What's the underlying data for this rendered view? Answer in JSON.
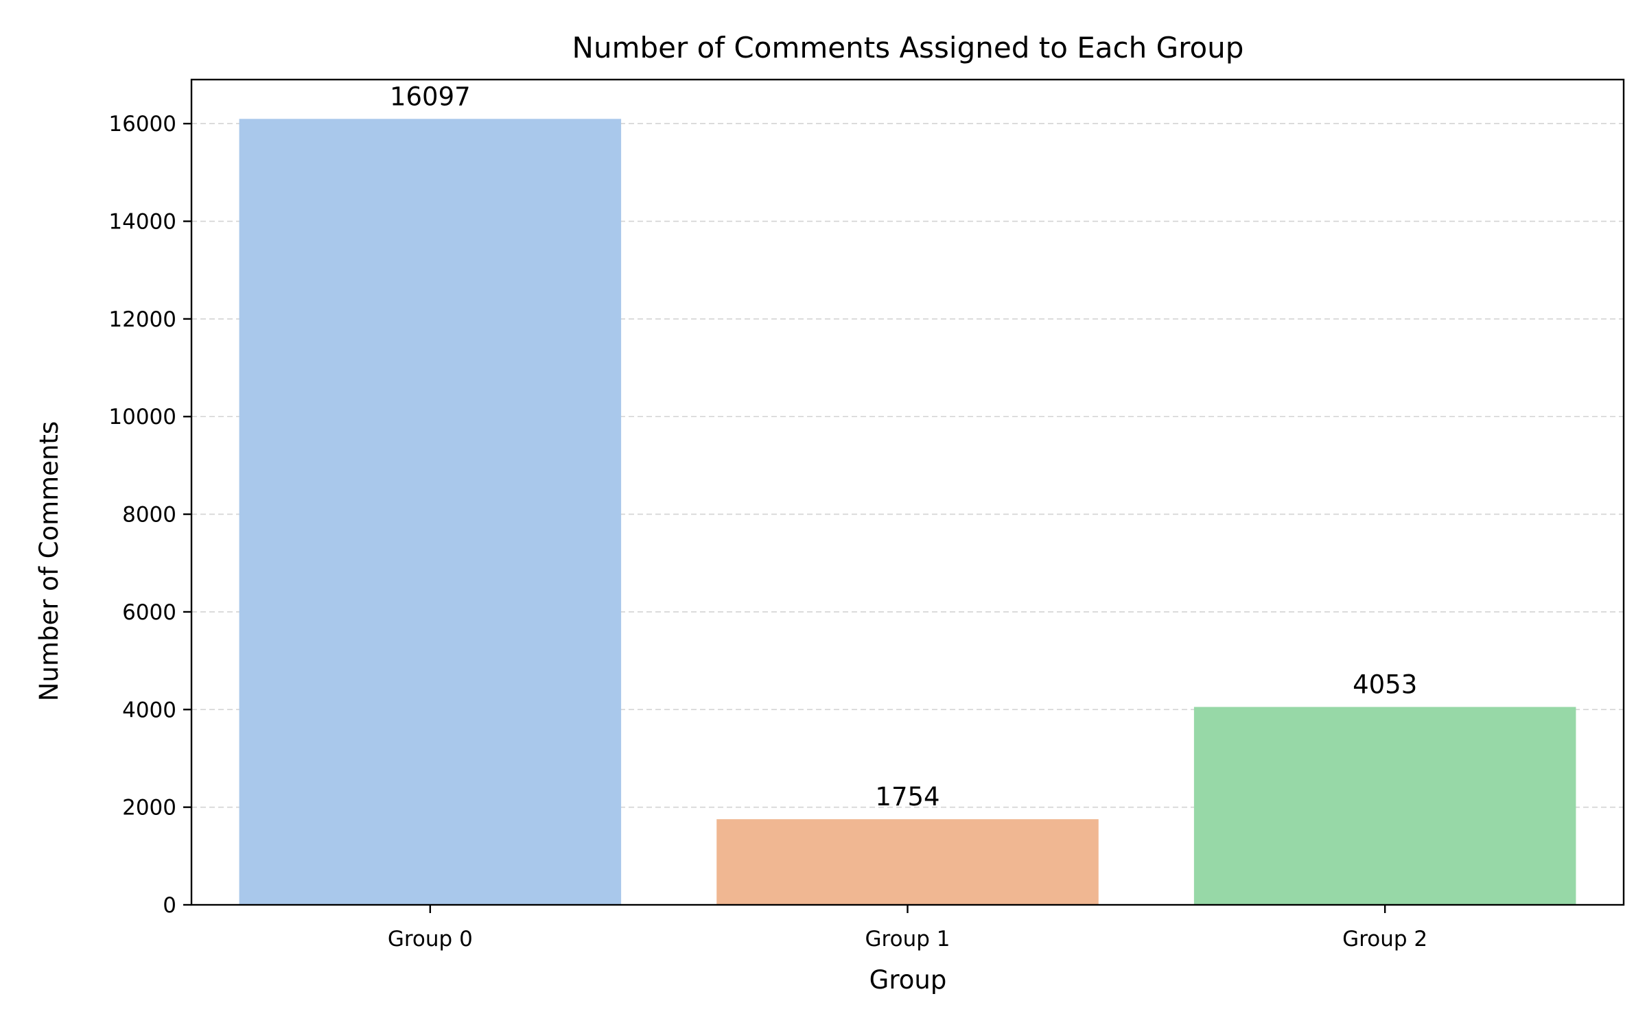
{
  "chart_data": {
    "type": "bar",
    "title": "Number of Comments Assigned to Each Group",
    "xlabel": "Group",
    "ylabel": "Number of Comments",
    "categories": [
      "Group 0",
      "Group 1",
      "Group 2"
    ],
    "values": [
      16097,
      1754,
      4053
    ],
    "data_labels": [
      "16097",
      "1754",
      "4053"
    ],
    "colors": [
      "#a9c8eb",
      "#f0b792",
      "#97d8a7"
    ],
    "yticks": [
      0,
      2000,
      4000,
      6000,
      8000,
      10000,
      12000,
      14000,
      16000
    ],
    "ytick_labels": [
      "0",
      "2000",
      "4000",
      "6000",
      "8000",
      "10000",
      "12000",
      "14000",
      "16000"
    ],
    "ylim": [
      0,
      16902
    ],
    "grid": "y-dashed",
    "legend": "none"
  }
}
